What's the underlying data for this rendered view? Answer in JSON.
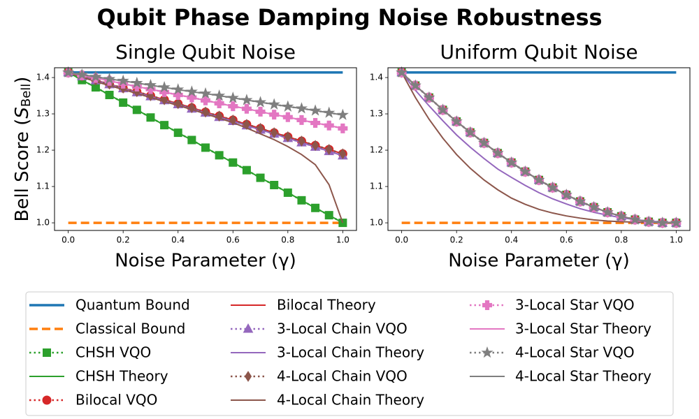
{
  "title": "Qubit Phase Damping Noise Robustness",
  "legend": [
    {
      "name": "Quantum Bound",
      "color": "#1f77b4",
      "line": "solid",
      "width": 3.5,
      "marker": null
    },
    {
      "name": "Classical Bound",
      "color": "#ff7f0e",
      "line": "dashed",
      "width": 3.5,
      "marker": null
    },
    {
      "name": "CHSH VQO",
      "color": "#2ca02c",
      "line": "dotted",
      "width": 2.5,
      "marker": "square"
    },
    {
      "name": "CHSH Theory",
      "color": "#2ca02c",
      "line": "solid",
      "width": 2,
      "marker": null
    },
    {
      "name": "Bilocal VQO",
      "color": "#d62728",
      "line": "dotted",
      "width": 2.5,
      "marker": "circle"
    },
    {
      "name": "Bilocal Theory",
      "color": "#d62728",
      "line": "solid",
      "width": 2,
      "marker": null
    },
    {
      "name": "3-Local Chain VQO",
      "color": "#9467bd",
      "line": "dotted",
      "width": 2.5,
      "marker": "triangle"
    },
    {
      "name": "3-Local Chain Theory",
      "color": "#9467bd",
      "line": "solid",
      "width": 2,
      "marker": null
    },
    {
      "name": "4-Local Chain VQO",
      "color": "#8c564b",
      "line": "dotted",
      "width": 2.5,
      "marker": "diamond"
    },
    {
      "name": "4-Local Chain Theory",
      "color": "#8c564b",
      "line": "solid",
      "width": 2,
      "marker": null
    },
    {
      "name": "3-Local Star VQO",
      "color": "#e377c2",
      "line": "dotted",
      "width": 2.5,
      "marker": "plus"
    },
    {
      "name": "3-Local Star Theory",
      "color": "#e377c2",
      "line": "solid",
      "width": 2,
      "marker": null
    },
    {
      "name": "4-Local Star VQO",
      "color": "#7f7f7f",
      "line": "dotted",
      "width": 2.5,
      "marker": "star"
    },
    {
      "name": "4-Local Star Theory",
      "color": "#7f7f7f",
      "line": "solid",
      "width": 2,
      "marker": null
    }
  ],
  "chart_data": [
    {
      "type": "line",
      "title": "Single Qubit Noise",
      "xlabel": "Noise Parameter (γ)",
      "ylabel": {
        "text": "Bell Score (",
        "symbol": "S",
        "sub": "Bell",
        "close": ")"
      },
      "x": [
        0,
        0.05,
        0.1,
        0.15,
        0.2,
        0.25,
        0.3,
        0.35,
        0.4,
        0.45,
        0.5,
        0.55,
        0.6,
        0.65,
        0.7,
        0.75,
        0.8,
        0.85,
        0.9,
        0.95,
        1
      ],
      "xlim": [
        -0.05,
        1.05
      ],
      "ylim": [
        0.979,
        1.427
      ],
      "xticks": [
        {
          "value": 0,
          "label": "0.0"
        },
        0.2,
        0.4,
        0.6,
        0.8,
        {
          "value": 1,
          "label": "1.0"
        }
      ],
      "yticks": [
        {
          "value": 1,
          "label": "1.0"
        },
        1.1,
        1.2,
        1.3,
        1.4
      ],
      "series": [
        {
          "values": [
            1.414,
            1.414,
            1.414,
            1.414,
            1.414,
            1.414,
            1.414,
            1.414,
            1.414,
            1.414,
            1.414,
            1.414,
            1.414,
            1.414,
            1.414,
            1.414,
            1.414,
            1.414,
            1.414,
            1.414,
            1.414
          ]
        },
        {
          "values": [
            1,
            1,
            1,
            1,
            1,
            1,
            1,
            1,
            1,
            1,
            1,
            1,
            1,
            1,
            1,
            1,
            1,
            1,
            1,
            1,
            1
          ]
        },
        {
          "values": [
            1.414,
            1.393,
            1.373,
            1.352,
            1.331,
            1.311,
            1.29,
            1.269,
            1.248,
            1.228,
            1.207,
            1.186,
            1.166,
            1.145,
            1.124,
            1.104,
            1.083,
            1.062,
            1.041,
            1.021,
            1.0
          ]
        },
        {
          "values": [
            1.414,
            1.393,
            1.373,
            1.352,
            1.331,
            1.311,
            1.29,
            1.269,
            1.248,
            1.228,
            1.207,
            1.186,
            1.166,
            1.145,
            1.124,
            1.104,
            1.083,
            1.062,
            1.041,
            1.021,
            1.0
          ]
        },
        {
          "values": [
            1.414,
            1.404,
            1.393,
            1.382,
            1.371,
            1.361,
            1.35,
            1.339,
            1.328,
            1.317,
            1.305,
            1.294,
            1.283,
            1.271,
            1.26,
            1.248,
            1.237,
            1.225,
            1.213,
            1.202,
            1.19
          ]
        },
        {
          "values": [
            1.414,
            1.404,
            1.393,
            1.382,
            1.371,
            1.361,
            1.35,
            1.339,
            1.328,
            1.317,
            1.305,
            1.294,
            1.283,
            1.271,
            1.26,
            1.248,
            1.237,
            1.225,
            1.213,
            1.202,
            1.19
          ]
        },
        {
          "values": [
            1.414,
            1.403,
            1.392,
            1.381,
            1.37,
            1.359,
            1.348,
            1.337,
            1.326,
            1.314,
            1.303,
            1.291,
            1.28,
            1.268,
            1.256,
            1.245,
            1.233,
            1.221,
            1.209,
            1.197,
            1.185
          ]
        },
        {
          "values": [
            1.414,
            1.403,
            1.392,
            1.381,
            1.37,
            1.359,
            1.348,
            1.337,
            1.326,
            1.314,
            1.303,
            1.291,
            1.28,
            1.268,
            1.256,
            1.245,
            1.233,
            1.221,
            1.209,
            1.197,
            1.185
          ]
        },
        {
          "values": [
            1.414,
            1.404,
            1.393,
            1.382,
            1.371,
            1.361,
            1.35,
            1.339,
            1.328,
            1.317,
            1.305,
            1.294,
            1.283,
            1.271,
            1.26,
            1.248,
            1.237,
            1.225,
            1.213,
            1.202,
            1.19
          ]
        },
        {
          "values": [
            1.414,
            1.401,
            1.389,
            1.378,
            1.367,
            1.356,
            1.345,
            1.334,
            1.323,
            1.312,
            1.3,
            1.288,
            1.276,
            1.261,
            1.245,
            1.229,
            1.21,
            1.188,
            1.16,
            1.105,
            1.0
          ]
        },
        {
          "values": [
            1.414,
            1.406,
            1.399,
            1.391,
            1.383,
            1.375,
            1.368,
            1.36,
            1.352,
            1.345,
            1.337,
            1.329,
            1.321,
            1.314,
            1.306,
            1.298,
            1.291,
            1.283,
            1.275,
            1.268,
            1.26
          ]
        },
        {
          "values": [
            1.414,
            1.406,
            1.399,
            1.391,
            1.383,
            1.375,
            1.368,
            1.36,
            1.352,
            1.345,
            1.337,
            1.329,
            1.321,
            1.314,
            1.306,
            1.298,
            1.291,
            1.283,
            1.275,
            1.268,
            1.26
          ]
        },
        {
          "values": [
            1.414,
            1.408,
            1.402,
            1.396,
            1.391,
            1.385,
            1.379,
            1.373,
            1.367,
            1.361,
            1.356,
            1.35,
            1.344,
            1.338,
            1.332,
            1.326,
            1.32,
            1.315,
            1.309,
            1.303,
            1.297
          ]
        },
        {
          "values": [
            1.414,
            1.408,
            1.402,
            1.396,
            1.391,
            1.385,
            1.379,
            1.373,
            1.367,
            1.361,
            1.356,
            1.35,
            1.344,
            1.338,
            1.332,
            1.326,
            1.32,
            1.315,
            1.309,
            1.303,
            1.297
          ]
        }
      ]
    },
    {
      "type": "line",
      "title": "Uniform Qubit Noise",
      "xlabel": "Noise Parameter (γ)",
      "x": [
        0,
        0.05,
        0.1,
        0.15,
        0.2,
        0.25,
        0.3,
        0.35,
        0.4,
        0.45,
        0.5,
        0.55,
        0.6,
        0.65,
        0.7,
        0.75,
        0.8,
        0.85,
        0.9,
        0.95,
        1
      ],
      "xlim": [
        -0.05,
        1.05
      ],
      "ylim": [
        0.979,
        1.427
      ],
      "xticks": [
        {
          "value": 0,
          "label": "0.0"
        },
        0.2,
        0.4,
        0.6,
        0.8,
        {
          "value": 1,
          "label": "1.0"
        }
      ],
      "yticks": [
        {
          "value": 1,
          "label": "1.0"
        },
        1.1,
        1.2,
        1.3,
        1.4
      ],
      "series": [
        {
          "values": [
            1.414,
            1.414,
            1.414,
            1.414,
            1.414,
            1.414,
            1.414,
            1.414,
            1.414,
            1.414,
            1.414,
            1.414,
            1.414,
            1.414,
            1.414,
            1.414,
            1.414,
            1.414,
            1.414,
            1.414,
            1.414
          ]
        },
        {
          "values": [
            1,
            1,
            1,
            1,
            1,
            1,
            1,
            1,
            1,
            1,
            1,
            1,
            1,
            1,
            1,
            1,
            1,
            1,
            1,
            1,
            1
          ]
        },
        {
          "values": [
            1.414,
            1.378,
            1.345,
            1.311,
            1.279,
            1.249,
            1.22,
            1.192,
            1.166,
            1.141,
            1.118,
            1.097,
            1.077,
            1.059,
            1.043,
            1.029,
            1.018,
            1.009,
            1.003,
            1.0,
            1.0
          ]
        },
        {
          "values": [
            1.414,
            1.378,
            1.345,
            1.311,
            1.279,
            1.249,
            1.22,
            1.192,
            1.166,
            1.141,
            1.118,
            1.097,
            1.077,
            1.059,
            1.043,
            1.029,
            1.018,
            1.009,
            1.003,
            1.0,
            1.0
          ]
        },
        {
          "values": [
            1.414,
            1.378,
            1.345,
            1.311,
            1.279,
            1.249,
            1.22,
            1.192,
            1.166,
            1.141,
            1.118,
            1.097,
            1.077,
            1.059,
            1.043,
            1.029,
            1.018,
            1.009,
            1.003,
            1.0,
            1.0
          ]
        },
        {
          "values": [
            1.414,
            1.378,
            1.345,
            1.311,
            1.279,
            1.249,
            1.22,
            1.192,
            1.166,
            1.141,
            1.118,
            1.097,
            1.077,
            1.059,
            1.043,
            1.029,
            1.018,
            1.009,
            1.003,
            1.0,
            1.0
          ]
        },
        {
          "values": [
            1.414,
            1.378,
            1.345,
            1.311,
            1.279,
            1.249,
            1.22,
            1.192,
            1.166,
            1.141,
            1.118,
            1.097,
            1.077,
            1.059,
            1.043,
            1.029,
            1.018,
            1.009,
            1.003,
            1.0,
            1.0
          ]
        },
        {
          "values": [
            1.414,
            1.365,
            1.322,
            1.281,
            1.242,
            1.208,
            1.177,
            1.148,
            1.125,
            1.103,
            1.083,
            1.066,
            1.052,
            1.039,
            1.029,
            1.021,
            1.014,
            1.009,
            1.005,
            1.002,
            1.0
          ]
        },
        {
          "values": [
            1.414,
            1.378,
            1.345,
            1.311,
            1.279,
            1.249,
            1.22,
            1.192,
            1.166,
            1.141,
            1.118,
            1.097,
            1.077,
            1.059,
            1.043,
            1.029,
            1.018,
            1.009,
            1.003,
            1.0,
            1.0
          ]
        },
        {
          "values": [
            1.414,
            1.345,
            1.285,
            1.233,
            1.188,
            1.15,
            1.118,
            1.091,
            1.068,
            1.051,
            1.037,
            1.027,
            1.019,
            1.013,
            1.008,
            1.005,
            1.003,
            1.002,
            1.001,
            1.0,
            1.0
          ]
        },
        {
          "values": [
            1.414,
            1.378,
            1.345,
            1.311,
            1.279,
            1.249,
            1.22,
            1.192,
            1.166,
            1.141,
            1.118,
            1.097,
            1.077,
            1.059,
            1.043,
            1.029,
            1.018,
            1.009,
            1.003,
            1.0,
            1.0
          ]
        },
        {
          "values": [
            1.414,
            1.378,
            1.345,
            1.311,
            1.279,
            1.249,
            1.22,
            1.192,
            1.166,
            1.141,
            1.118,
            1.097,
            1.077,
            1.059,
            1.043,
            1.029,
            1.018,
            1.009,
            1.003,
            1.0,
            1.0
          ]
        },
        {
          "values": [
            1.414,
            1.378,
            1.345,
            1.311,
            1.279,
            1.249,
            1.22,
            1.192,
            1.166,
            1.141,
            1.118,
            1.097,
            1.077,
            1.059,
            1.043,
            1.029,
            1.018,
            1.009,
            1.003,
            1.0,
            1.0
          ]
        },
        {
          "values": [
            1.414,
            1.378,
            1.345,
            1.311,
            1.279,
            1.249,
            1.22,
            1.192,
            1.166,
            1.141,
            1.118,
            1.097,
            1.077,
            1.059,
            1.043,
            1.029,
            1.018,
            1.009,
            1.003,
            1.0,
            1.0
          ]
        }
      ]
    }
  ]
}
